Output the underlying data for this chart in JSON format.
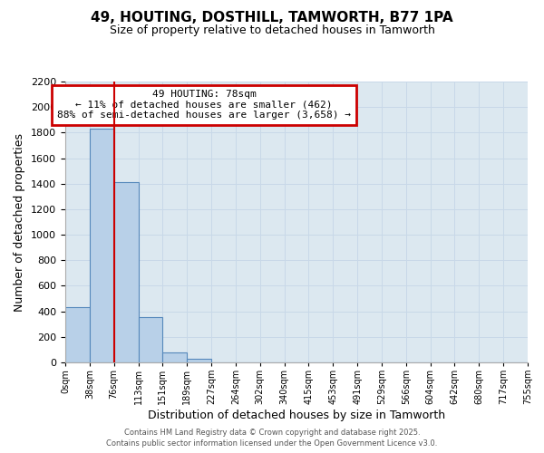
{
  "title": "49, HOUTING, DOSTHILL, TAMWORTH, B77 1PA",
  "subtitle": "Size of property relative to detached houses in Tamworth",
  "xlabel": "Distribution of detached houses by size in Tamworth",
  "ylabel": "Number of detached properties",
  "categories": [
    "0sqm",
    "38sqm",
    "76sqm",
    "113sqm",
    "151sqm",
    "189sqm",
    "227sqm",
    "264sqm",
    "302sqm",
    "340sqm",
    "415sqm",
    "453sqm",
    "491sqm",
    "529sqm",
    "566sqm",
    "604sqm",
    "642sqm",
    "680sqm",
    "717sqm",
    "755sqm"
  ],
  "bar_values": [
    430,
    1830,
    1415,
    355,
    75,
    25,
    0,
    0,
    0,
    0,
    0,
    0,
    0,
    0,
    0,
    0,
    0,
    0,
    0
  ],
  "bar_color": "#b8d0e8",
  "bar_edge_color": "#5588bb",
  "red_line_x": 2,
  "ylim": [
    0,
    2200
  ],
  "yticks": [
    0,
    200,
    400,
    600,
    800,
    1000,
    1200,
    1400,
    1600,
    1800,
    2000,
    2200
  ],
  "annotation_title": "49 HOUTING: 78sqm",
  "annotation_line1": "← 11% of detached houses are smaller (462)",
  "annotation_line2": "88% of semi-detached houses are larger (3,658) →",
  "annotation_box_color": "#ffffff",
  "annotation_border_color": "#cc0000",
  "red_line_color": "#cc0000",
  "background_color": "#ffffff",
  "grid_color": "#c8d8e8",
  "axes_bg_color": "#dce8f0",
  "footer1": "Contains HM Land Registry data © Crown copyright and database right 2025.",
  "footer2": "Contains public sector information licensed under the Open Government Licence v3.0."
}
